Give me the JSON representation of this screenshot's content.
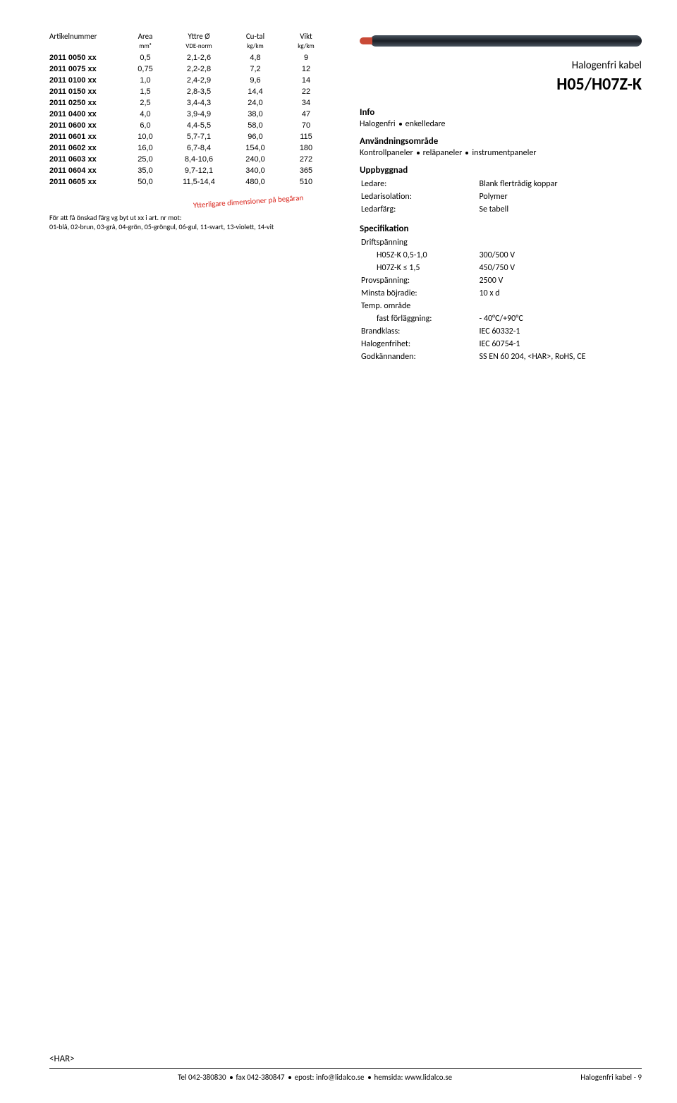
{
  "table": {
    "headers": {
      "c1": "Artikelnummer",
      "c2": "Area",
      "c2sub": "mm²",
      "c3": "Yttre Ø",
      "c3sub": "VDE-norm",
      "c4": "Cu-tal",
      "c4sub": "kg/km",
      "c5": "Vikt",
      "c5sub": "kg/km"
    },
    "rows": [
      [
        "2011 0050 xx",
        "0,5",
        "2,1-2,6",
        "4,8",
        "9"
      ],
      [
        "2011 0075 xx",
        "0,75",
        "2,2-2,8",
        "7,2",
        "12"
      ],
      [
        "2011 0100 xx",
        "1,0",
        "2,4-2,9",
        "9,6",
        "14"
      ],
      [
        "2011 0150 xx",
        "1,5",
        "2,8-3,5",
        "14,4",
        "22"
      ],
      [
        "2011 0250 xx",
        "2,5",
        "3,4-4,3",
        "24,0",
        "34"
      ],
      [
        "2011 0400 xx",
        "4,0",
        "3,9-4,9",
        "38,0",
        "47"
      ],
      [
        "2011 0600 xx",
        "6,0",
        "4,4-5,5",
        "58,0",
        "70"
      ],
      [
        "2011 0601 xx",
        "10,0",
        "5,7-7,1",
        "96,0",
        "115"
      ],
      [
        "2011 0602 xx",
        "16,0",
        "6,7-8,4",
        "154,0",
        "180"
      ],
      [
        "2011 0603 xx",
        "25,0",
        "8,4-10,6",
        "240,0",
        "272"
      ],
      [
        "2011 0604 xx",
        "35,0",
        "9,7-12,1",
        "340,0",
        "365"
      ],
      [
        "2011 0605 xx",
        "50,0",
        "11,5-14,4",
        "480,0",
        "510"
      ]
    ]
  },
  "extra_note": "Ytterligare dimensioner på begäran",
  "color_note_l1": "För att få önskad färg vg byt ut xx i art. nr mot:",
  "color_note_l2": "01-blå, 02-brun, 03-grå, 04-grön, 05-gröngul, 06-gul, 11-svart, 13-violett, 14-vit",
  "right": {
    "subtitle": "Halogenfri kabel",
    "title": "H05/H07Z-K",
    "info_head": "Info",
    "info_body_a": "Halogenfri",
    "info_body_b": "enkelledare",
    "use_head": "Användningsområde",
    "use_a": "Kontrollpaneler",
    "use_b": "reläpaneler",
    "use_c": "instrumentpaneler",
    "build_head": "Uppbyggnad",
    "build": [
      [
        "Ledare:",
        "Blank flertrådig koppar"
      ],
      [
        "Ledarisolation:",
        "Polymer"
      ],
      [
        "Ledarfärg:",
        "Se tabell"
      ]
    ],
    "spec_head": "Specifikation",
    "spec_driftspanning": "Driftspänning",
    "spec_rows": [
      {
        "k": "H05Z-K 0,5-1,0",
        "v": "300/500 V",
        "indent": true
      },
      {
        "k": "H07Z-K ≤ 1,5",
        "v": "450/750 V",
        "indent": true
      },
      {
        "k": "Provspänning:",
        "v": "2500 V"
      },
      {
        "k": "Minsta böjradie:",
        "v": "10 x d"
      },
      {
        "k": "Temp. område",
        "v": ""
      },
      {
        "k": "fast förläggning:",
        "v": "- 40°C/+90°C",
        "indent": true
      },
      {
        "k": "Brandklass:",
        "v": "IEC 60332-1"
      },
      {
        "k": "Halogenfrihet:",
        "v": "IEC 60754-1"
      },
      {
        "k": "Godkännanden:",
        "v": "SS EN 60 204, <HAR>, RoHS, CE"
      }
    ]
  },
  "footer": {
    "har": "<HAR>",
    "contact_tel": "Tel 042-380830",
    "contact_fax": "fax 042-380847",
    "contact_email": "epost: info@lidalco.se",
    "contact_web": "hemsida: www.lidalco.se",
    "right": "Halogenfri kabel - 9"
  }
}
